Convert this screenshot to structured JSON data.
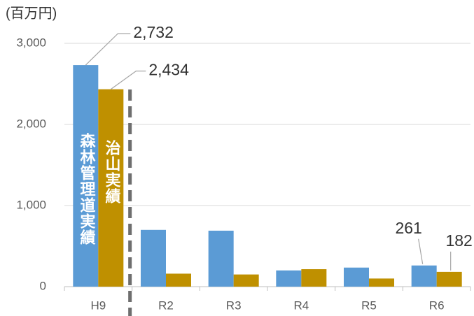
{
  "chart_data": {
    "type": "bar",
    "y_axis_label": "(百万円)",
    "categories": [
      "H9",
      "R2",
      "R3",
      "R4",
      "R5",
      "R6"
    ],
    "series": [
      {
        "name": "森林管理道実績",
        "color": "#5b9bd5",
        "values": [
          2732,
          700,
          690,
          200,
          235,
          261
        ],
        "value_labels": [
          "2,732",
          null,
          null,
          null,
          null,
          "261"
        ]
      },
      {
        "name": "治山実績",
        "color": "#bf9000",
        "values": [
          2434,
          160,
          150,
          215,
          100,
          182
        ],
        "value_labels": [
          "2,434",
          null,
          null,
          null,
          null,
          "182"
        ]
      }
    ],
    "ylim": [
      0,
      3000
    ],
    "yticks": [
      0,
      {
        "value": 1000,
        "label": "1,000"
      },
      {
        "value": 2000,
        "label": "2,000"
      },
      {
        "value": 3000,
        "label": "3,000"
      }
    ],
    "grid": true
  }
}
